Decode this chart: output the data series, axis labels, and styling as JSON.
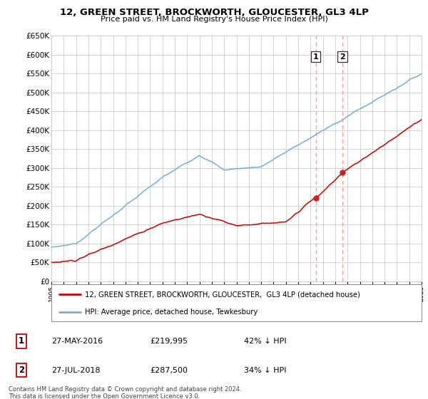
{
  "title": "12, GREEN STREET, BROCKWORTH, GLOUCESTER, GL3 4LP",
  "subtitle": "Price paid vs. HM Land Registry's House Price Index (HPI)",
  "sale1_date": "27-MAY-2016",
  "sale1_price": 219995,
  "sale1_label": "42% ↓ HPI",
  "sale1_num": "1",
  "sale2_date": "27-JUL-2018",
  "sale2_price": 287500,
  "sale2_label": "34% ↓ HPI",
  "sale2_num": "2",
  "red_line_label": "12, GREEN STREET, BROCKWORTH, GLOUCESTER,  GL3 4LP (detached house)",
  "blue_line_label": "HPI: Average price, detached house, Tewkesbury",
  "footer": "Contains HM Land Registry data © Crown copyright and database right 2024.\nThis data is licensed under the Open Government Licence v3.0.",
  "ylim": [
    0,
    650000
  ],
  "yticks": [
    0,
    50000,
    100000,
    150000,
    200000,
    250000,
    300000,
    350000,
    400000,
    450000,
    500000,
    550000,
    600000,
    650000
  ],
  "bg_color": "#ffffff",
  "grid_color": "#cccccc",
  "red_color": "#cc0000",
  "blue_color": "#7aadd4",
  "vline_color": "#ff9999",
  "sale1_yr": 2016.417,
  "sale2_yr": 2018.583,
  "xmin": 1995,
  "xmax": 2025
}
